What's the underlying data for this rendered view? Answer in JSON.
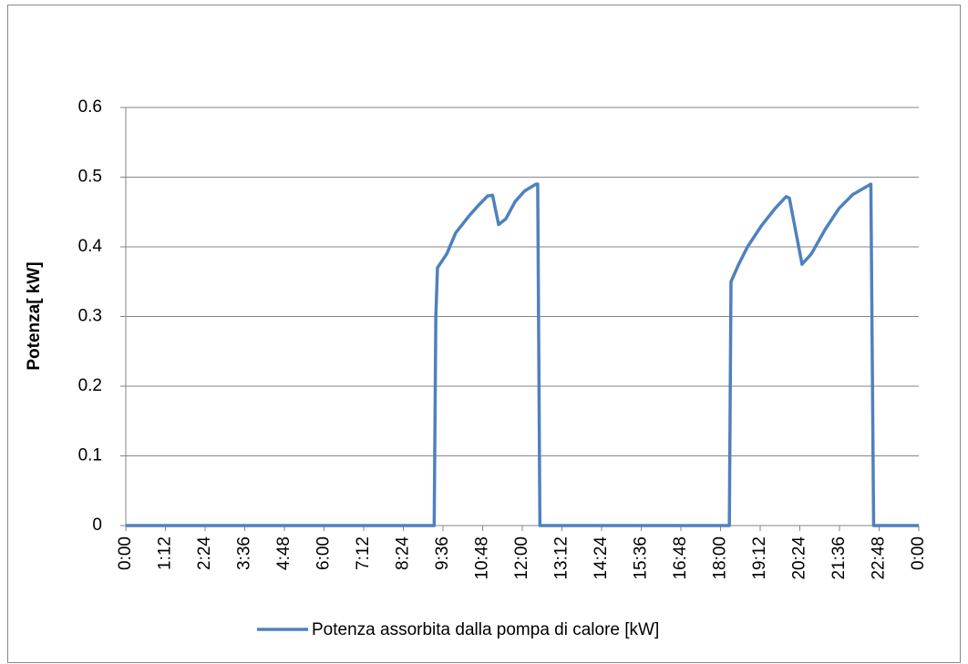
{
  "chart_data": {
    "type": "line",
    "ylabel": "Potenza[ kW]",
    "x": [
      0,
      560,
      563,
      566,
      583,
      599,
      624,
      641,
      657,
      666,
      677,
      690,
      707,
      724,
      745,
      748,
      752,
      1096,
      1099,
      1113,
      1129,
      1154,
      1179,
      1199,
      1205,
      1228,
      1245,
      1270,
      1295,
      1320,
      1353,
      1358,
      1440
    ],
    "series": [
      {
        "name": "Potenza assorbita dalla pompa di calore [kW]",
        "color": "#4f81bd",
        "values": [
          0,
          0,
          0.3,
          0.37,
          0.39,
          0.42,
          0.445,
          0.46,
          0.473,
          0.474,
          0.432,
          0.44,
          0.465,
          0.48,
          0.49,
          0.49,
          0,
          0,
          0.35,
          0.375,
          0.4,
          0.43,
          0.455,
          0.472,
          0.47,
          0.375,
          0.39,
          0.425,
          0.455,
          0.475,
          0.49,
          0,
          0
        ]
      }
    ],
    "xlim": [
      0,
      1440
    ],
    "xticks": [
      {
        "value": 0,
        "label": "0:00"
      },
      {
        "value": 72,
        "label": "1:12"
      },
      {
        "value": 144,
        "label": "2:24"
      },
      {
        "value": 216,
        "label": "3:36"
      },
      {
        "value": 288,
        "label": "4:48"
      },
      {
        "value": 360,
        "label": "6:00"
      },
      {
        "value": 432,
        "label": "7:12"
      },
      {
        "value": 504,
        "label": "8:24"
      },
      {
        "value": 576,
        "label": "9:36"
      },
      {
        "value": 648,
        "label": "10:48"
      },
      {
        "value": 720,
        "label": "12:00"
      },
      {
        "value": 792,
        "label": "13:12"
      },
      {
        "value": 864,
        "label": "14:24"
      },
      {
        "value": 936,
        "label": "15:36"
      },
      {
        "value": 1008,
        "label": "16:48"
      },
      {
        "value": 1080,
        "label": "18:00"
      },
      {
        "value": 1152,
        "label": "19:12"
      },
      {
        "value": 1224,
        "label": "20:24"
      },
      {
        "value": 1296,
        "label": "21:36"
      },
      {
        "value": 1368,
        "label": "22:48"
      },
      {
        "value": 1440,
        "label": "0:00"
      }
    ],
    "ylim": [
      0,
      0.6
    ],
    "yticks": [
      0,
      0.1,
      0.2,
      0.3,
      0.4,
      0.5,
      0.6
    ],
    "grid": true,
    "legend": "bottom"
  }
}
